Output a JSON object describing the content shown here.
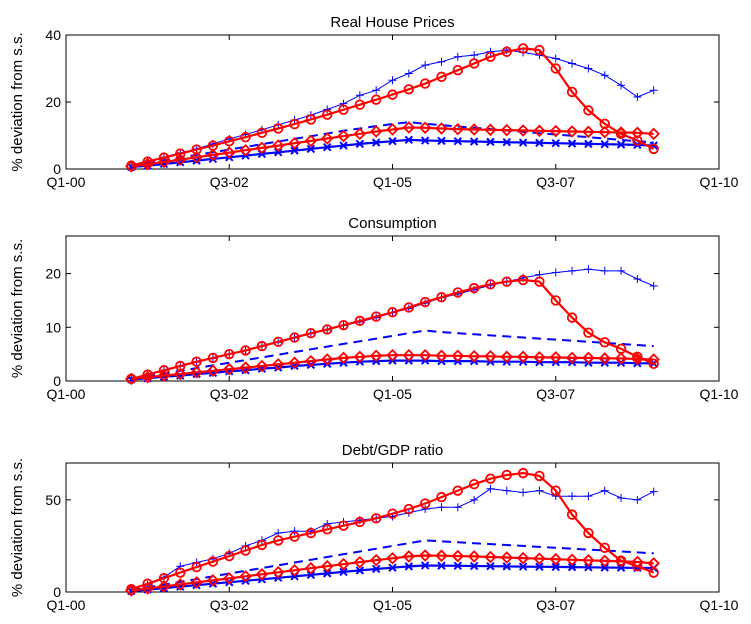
{
  "chart_data": [
    {
      "type": "line",
      "title": "Real House Prices",
      "xlabel": "",
      "ylabel": "% deviation from s.s.",
      "xlim": [
        0,
        40
      ],
      "ylim": [
        0,
        40
      ],
      "x_tick_labels": [
        "Q1-00",
        "Q3-02",
        "Q1-05",
        "Q3-07",
        "Q1-10"
      ],
      "y_tick_labels": [
        "0",
        "20",
        "40"
      ],
      "y_ticks": [
        0,
        20,
        40
      ],
      "x_start": 4,
      "grid": false,
      "series": [
        {
          "style": "thin-plus",
          "color": "#0000ff",
          "values": [
            1.2,
            2.4,
            3.5,
            4.8,
            6.0,
            7.5,
            9.0,
            10.3,
            11.7,
            13.2,
            14.6,
            16.1,
            17.8,
            19.5,
            22.0,
            23.5,
            26.5,
            28.5,
            31.0,
            32.0,
            33.5,
            34.0,
            35.0,
            35.5,
            34.8,
            34.0,
            33.0,
            31.5,
            30.0,
            28.0,
            25.0,
            21.5,
            23.5
          ]
        },
        {
          "style": "dashed",
          "color": "#0000ff",
          "values": [
            1.0,
            1.8,
            2.6,
            3.4,
            4.2,
            5.0,
            5.8,
            6.6,
            7.4,
            8.2,
            9.0,
            9.8,
            10.6,
            11.4,
            12.1,
            12.8,
            13.4,
            14.0,
            13.5,
            13.1,
            12.7,
            12.3,
            11.9,
            11.5,
            11.1,
            10.7,
            10.3,
            9.9,
            9.5,
            9.1,
            8.7,
            8.3,
            7.9
          ]
        },
        {
          "style": "thick-x",
          "color": "#0000ff",
          "values": [
            0.6,
            1.0,
            1.5,
            2.0,
            2.5,
            3.0,
            3.5,
            4.0,
            4.5,
            5.0,
            5.5,
            6.0,
            6.5,
            7.0,
            7.5,
            7.9,
            8.3,
            8.7,
            8.5,
            8.4,
            8.3,
            8.2,
            8.1,
            8.0,
            7.9,
            7.8,
            7.7,
            7.6,
            7.5,
            7.4,
            7.3,
            7.2,
            7.0
          ]
        },
        {
          "style": "thick-diamond",
          "color": "#ff0000",
          "values": [
            0.8,
            1.4,
            2.1,
            2.8,
            3.5,
            4.2,
            4.9,
            5.6,
            6.3,
            7.0,
            7.7,
            8.4,
            9.1,
            9.8,
            10.5,
            11.2,
            11.8,
            12.4,
            12.3,
            12.1,
            11.9,
            11.8,
            11.7,
            11.6,
            11.5,
            11.4,
            11.3,
            11.2,
            11.1,
            11.0,
            10.9,
            10.8,
            10.5
          ]
        },
        {
          "style": "thick-circle",
          "color": "#ff0000",
          "values": [
            1.0,
            2.2,
            3.4,
            4.6,
            5.8,
            7.0,
            8.3,
            9.5,
            10.8,
            12.1,
            13.4,
            14.8,
            16.2,
            17.7,
            19.2,
            20.7,
            22.2,
            23.8,
            25.5,
            27.5,
            29.5,
            31.5,
            33.5,
            35.0,
            36.0,
            35.5,
            30.0,
            23.0,
            17.5,
            13.5,
            10.5,
            8.5,
            6.0
          ]
        }
      ]
    },
    {
      "type": "line",
      "title": "Consumption",
      "xlabel": "",
      "ylabel": "% deviation from s.s.",
      "xlim": [
        0,
        40
      ],
      "ylim": [
        0,
        27
      ],
      "x_tick_labels": [
        "Q1-00",
        "Q3-02",
        "Q1-05",
        "Q3-07",
        "Q1-10"
      ],
      "y_tick_labels": [
        "0",
        "10",
        "20"
      ],
      "y_ticks": [
        0,
        10,
        20
      ],
      "x_start": 4,
      "grid": false,
      "series": [
        {
          "style": "thin-plus",
          "color": "#0000ff",
          "values": [
            0.5,
            1.2,
            2.0,
            2.7,
            3.5,
            4.2,
            5.0,
            5.7,
            6.5,
            7.2,
            8.0,
            8.8,
            9.5,
            10.3,
            11.0,
            11.8,
            12.7,
            13.5,
            14.5,
            15.5,
            16.2,
            17.0,
            17.8,
            18.5,
            19.2,
            19.8,
            20.2,
            20.5,
            20.8,
            20.5,
            20.5,
            19.0,
            17.7
          ]
        },
        {
          "style": "dashed",
          "color": "#0000ff",
          "values": [
            0.5,
            0.9,
            1.4,
            1.9,
            2.4,
            2.9,
            3.4,
            3.9,
            4.4,
            4.9,
            5.4,
            5.9,
            6.4,
            6.9,
            7.4,
            7.9,
            8.4,
            8.9,
            9.4,
            9.1,
            8.9,
            8.7,
            8.5,
            8.3,
            8.1,
            7.9,
            7.7,
            7.5,
            7.3,
            7.1,
            6.9,
            6.7,
            6.5
          ]
        },
        {
          "style": "thick-x",
          "color": "#0000ff",
          "values": [
            0.3,
            0.5,
            0.8,
            1.0,
            1.3,
            1.5,
            1.8,
            2.0,
            2.3,
            2.5,
            2.8,
            3.0,
            3.2,
            3.4,
            3.6,
            3.7,
            3.8,
            3.8,
            3.8,
            3.7,
            3.7,
            3.7,
            3.6,
            3.6,
            3.6,
            3.5,
            3.5,
            3.5,
            3.4,
            3.4,
            3.4,
            3.3,
            3.3
          ]
        },
        {
          "style": "thick-diamond",
          "color": "#ff0000",
          "values": [
            0.4,
            0.7,
            1.0,
            1.3,
            1.6,
            1.9,
            2.2,
            2.5,
            2.8,
            3.1,
            3.4,
            3.7,
            4.0,
            4.3,
            4.5,
            4.7,
            4.8,
            4.8,
            4.8,
            4.7,
            4.7,
            4.6,
            4.6,
            4.5,
            4.5,
            4.4,
            4.4,
            4.3,
            4.3,
            4.2,
            4.2,
            4.1,
            4.0
          ]
        },
        {
          "style": "thick-circle",
          "color": "#ff0000",
          "values": [
            0.4,
            1.2,
            2.0,
            2.8,
            3.6,
            4.3,
            5.0,
            5.7,
            6.5,
            7.3,
            8.1,
            8.9,
            9.6,
            10.4,
            11.2,
            12.0,
            12.8,
            13.7,
            14.7,
            15.6,
            16.5,
            17.3,
            18.0,
            18.5,
            18.8,
            18.5,
            15.0,
            11.8,
            9.0,
            7.2,
            6.0,
            4.5,
            3.2
          ]
        }
      ]
    },
    {
      "type": "line",
      "title": "Debt/GDP ratio",
      "xlabel": "",
      "ylabel": "% deviation from s.s.",
      "xlim": [
        0,
        40
      ],
      "ylim": [
        0,
        70
      ],
      "x_tick_labels": [
        "Q1-00",
        "Q3-02",
        "Q1-05",
        "Q3-07",
        "Q1-10"
      ],
      "y_tick_labels": [
        "0",
        "50"
      ],
      "y_ticks": [
        0,
        50
      ],
      "x_start": 4,
      "grid": false,
      "series": [
        {
          "style": "thin-plus",
          "color": "#0000ff",
          "values": [
            1.5,
            4.0,
            8.0,
            14.0,
            16.0,
            18.0,
            21.0,
            25.0,
            28.0,
            32.0,
            33.0,
            33.0,
            37.0,
            38.0,
            39.0,
            40.0,
            41.0,
            43.0,
            45.0,
            46.0,
            46.0,
            50.0,
            56.0,
            55.0,
            54.0,
            55.0,
            52.0,
            52.0,
            52.0,
            55.0,
            51.0,
            50.0,
            54.5
          ]
        },
        {
          "style": "dashed",
          "color": "#0000ff",
          "values": [
            1.0,
            2.5,
            4.0,
            5.5,
            7.0,
            8.5,
            10.0,
            11.5,
            13.0,
            14.5,
            16.0,
            17.5,
            19.0,
            20.5,
            22.0,
            23.5,
            25.0,
            26.5,
            28.0,
            27.5,
            27.0,
            26.5,
            26.0,
            25.5,
            25.0,
            24.5,
            24.0,
            23.5,
            23.0,
            22.5,
            22.0,
            21.5,
            21.0
          ]
        },
        {
          "style": "thick-x",
          "color": "#0000ff",
          "values": [
            0.5,
            1.3,
            2.1,
            2.9,
            3.7,
            4.5,
            5.3,
            6.1,
            6.9,
            7.7,
            8.5,
            9.3,
            10.1,
            10.9,
            11.7,
            12.5,
            13.2,
            13.9,
            14.4,
            14.3,
            14.2,
            14.1,
            14.0,
            13.9,
            13.8,
            13.7,
            13.6,
            13.5,
            13.4,
            13.3,
            13.2,
            13.1,
            13.0
          ]
        },
        {
          "style": "thick-diamond",
          "color": "#ff0000",
          "values": [
            0.8,
            1.9,
            3.0,
            4.1,
            5.2,
            6.3,
            7.4,
            8.5,
            9.6,
            10.7,
            11.8,
            12.9,
            14.0,
            15.1,
            16.2,
            17.3,
            18.3,
            19.3,
            19.8,
            19.7,
            19.5,
            19.3,
            19.0,
            18.7,
            18.4,
            18.1,
            17.8,
            17.5,
            17.2,
            16.9,
            16.6,
            16.3,
            15.5
          ]
        },
        {
          "style": "thick-circle",
          "color": "#ff0000",
          "values": [
            1.5,
            4.5,
            7.5,
            10.5,
            13.5,
            16.5,
            19.5,
            22.5,
            25.5,
            28.0,
            30.0,
            32.0,
            34.0,
            36.0,
            38.0,
            40.0,
            42.5,
            45.0,
            48.0,
            51.5,
            55.0,
            58.5,
            61.5,
            63.5,
            64.5,
            63.0,
            55.0,
            42.0,
            32.0,
            24.0,
            17.0,
            14.0,
            10.5
          ]
        }
      ]
    }
  ]
}
